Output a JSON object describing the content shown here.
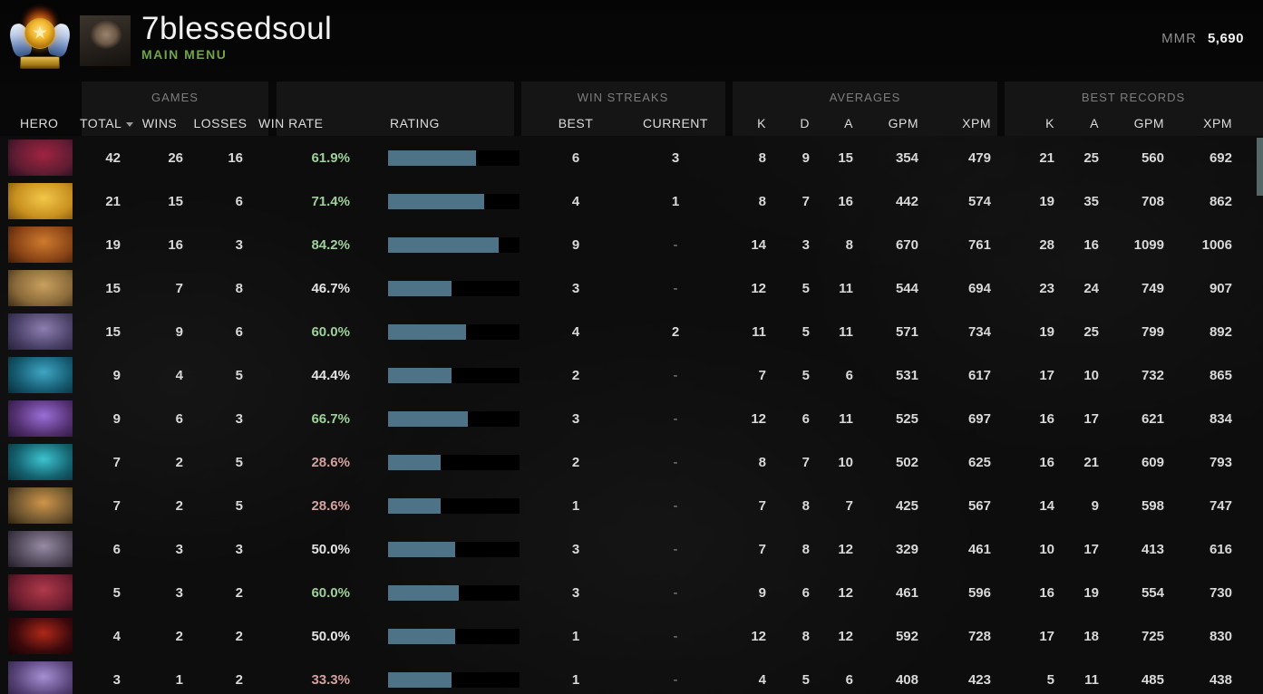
{
  "topbar": {
    "player_name": "7blessedsoul",
    "nav_label": "MAIN MENU",
    "mmr_label": "MMR",
    "mmr_value": "5,690",
    "rank_medal": "immortal-medal",
    "nav_color": "#71a347"
  },
  "table": {
    "hero_col": "HERO",
    "groups": {
      "games": "GAMES",
      "win_streaks": "WIN STREAKS",
      "averages": "AVERAGES",
      "best_records": "BEST RECORDS"
    },
    "columns": {
      "total": "TOTAL",
      "wins": "WINS",
      "losses": "LOSSES",
      "win_rate": "WIN RATE",
      "rating": "RATING",
      "best": "BEST",
      "current": "CURRENT",
      "k": "K",
      "d": "D",
      "a": "A",
      "gpm": "GPM",
      "xpm": "XPM",
      "rec_k": "K",
      "rec_a": "A",
      "rec_gpm": "GPM",
      "rec_xpm": "XPM"
    },
    "sorted_by": "total"
  },
  "colors": {
    "bar_fill": "#4e7386",
    "bar_bg": "#000000",
    "win_green": "#9ed09a",
    "win_red": "#d6a0a0",
    "win_neutral": "#e4e4e4",
    "scroll_thumb": "#566768"
  },
  "rows": [
    {
      "hero": "shadow-demon",
      "icon": {
        "c1": "#5f1d33",
        "c2": "#a12340",
        "c3": "#1c0a18"
      },
      "total": "42",
      "wins": "26",
      "losses": "16",
      "win_rate": "61.9%",
      "tone": "green",
      "rating_pct": 67,
      "best": "6",
      "current": "3",
      "k": "8",
      "d": "9",
      "a": "15",
      "gpm": "354",
      "xpm": "479",
      "rk": "21",
      "ra": "25",
      "rgpm": "560",
      "rxpm": "692"
    },
    {
      "hero": "vengeful-spirit",
      "icon": {
        "c1": "#c8901e",
        "c2": "#f2c84a",
        "c3": "#6a4408"
      },
      "total": "21",
      "wins": "15",
      "losses": "6",
      "win_rate": "71.4%",
      "tone": "green",
      "rating_pct": 73,
      "best": "4",
      "current": "1",
      "k": "8",
      "d": "7",
      "a": "16",
      "gpm": "442",
      "xpm": "574",
      "rk": "19",
      "ra": "35",
      "rgpm": "708",
      "rxpm": "862"
    },
    {
      "hero": "mars",
      "icon": {
        "c1": "#8a4416",
        "c2": "#cf7b2e",
        "c3": "#301405"
      },
      "total": "19",
      "wins": "16",
      "losses": "3",
      "win_rate": "84.2%",
      "tone": "green",
      "rating_pct": 84,
      "best": "9",
      "current": "-",
      "k": "14",
      "d": "3",
      "a": "8",
      "gpm": "670",
      "xpm": "761",
      "rk": "28",
      "ra": "16",
      "rgpm": "1099",
      "rxpm": "1006"
    },
    {
      "hero": "monkey-king",
      "icon": {
        "c1": "#8a6a3a",
        "c2": "#c9a05e",
        "c3": "#2c1f10"
      },
      "total": "15",
      "wins": "7",
      "losses": "8",
      "win_rate": "46.7%",
      "tone": "neutral",
      "rating_pct": 48,
      "best": "3",
      "current": "-",
      "k": "12",
      "d": "5",
      "a": "11",
      "gpm": "544",
      "xpm": "694",
      "rk": "23",
      "ra": "24",
      "rgpm": "749",
      "rxpm": "907"
    },
    {
      "hero": "tinker",
      "icon": {
        "c1": "#4a4168",
        "c2": "#8d7fb0",
        "c3": "#201a30"
      },
      "total": "15",
      "wins": "9",
      "losses": "6",
      "win_rate": "60.0%",
      "tone": "green",
      "rating_pct": 59,
      "best": "4",
      "current": "2",
      "k": "11",
      "d": "5",
      "a": "11",
      "gpm": "571",
      "xpm": "734",
      "rk": "19",
      "ra": "25",
      "rgpm": "799",
      "rxpm": "892"
    },
    {
      "hero": "morphling",
      "icon": {
        "c1": "#155a70",
        "c2": "#3fa6c4",
        "c3": "#06222e"
      },
      "total": "9",
      "wins": "4",
      "losses": "5",
      "win_rate": "44.4%",
      "tone": "neutral",
      "rating_pct": 48,
      "best": "2",
      "current": "-",
      "k": "7",
      "d": "5",
      "a": "6",
      "gpm": "531",
      "xpm": "617",
      "rk": "17",
      "ra": "10",
      "rgpm": "732",
      "rxpm": "865"
    },
    {
      "hero": "void-spirit",
      "icon": {
        "c1": "#533070",
        "c2": "#9a6fd8",
        "c3": "#1e1030"
      },
      "total": "9",
      "wins": "6",
      "losses": "3",
      "win_rate": "66.7%",
      "tone": "green",
      "rating_pct": 61,
      "best": "3",
      "current": "-",
      "k": "12",
      "d": "6",
      "a": "11",
      "gpm": "525",
      "xpm": "697",
      "rk": "16",
      "ra": "17",
      "rgpm": "621",
      "rxpm": "834"
    },
    {
      "hero": "storm-spirit",
      "icon": {
        "c1": "#14606e",
        "c2": "#3cc4cf",
        "c3": "#082830"
      },
      "total": "7",
      "wins": "2",
      "losses": "5",
      "win_rate": "28.6%",
      "tone": "red",
      "rating_pct": 40,
      "best": "2",
      "current": "-",
      "k": "8",
      "d": "7",
      "a": "10",
      "gpm": "502",
      "xpm": "625",
      "rk": "16",
      "ra": "21",
      "rgpm": "609",
      "rxpm": "793"
    },
    {
      "hero": "techies",
      "icon": {
        "c1": "#6e5530",
        "c2": "#cf9549",
        "c3": "#241806"
      },
      "total": "7",
      "wins": "2",
      "losses": "5",
      "win_rate": "28.6%",
      "tone": "red",
      "rating_pct": 40,
      "best": "1",
      "current": "-",
      "k": "7",
      "d": "8",
      "a": "7",
      "gpm": "425",
      "xpm": "567",
      "rk": "14",
      "ra": "9",
      "rgpm": "598",
      "rxpm": "747"
    },
    {
      "hero": "night-stalker",
      "icon": {
        "c1": "#4e4656",
        "c2": "#978ba4",
        "c3": "#18141e"
      },
      "total": "6",
      "wins": "3",
      "losses": "3",
      "win_rate": "50.0%",
      "tone": "neutral",
      "rating_pct": 51,
      "best": "3",
      "current": "-",
      "k": "7",
      "d": "8",
      "a": "12",
      "gpm": "329",
      "xpm": "461",
      "rk": "10",
      "ra": "17",
      "rgpm": "413",
      "rxpm": "616"
    },
    {
      "hero": "slardar",
      "icon": {
        "c1": "#6e1e30",
        "c2": "#b03a4a",
        "c3": "#200810"
      },
      "total": "5",
      "wins": "3",
      "losses": "2",
      "win_rate": "60.0%",
      "tone": "green",
      "rating_pct": 54,
      "best": "3",
      "current": "-",
      "k": "9",
      "d": "6",
      "a": "12",
      "gpm": "461",
      "xpm": "596",
      "rk": "16",
      "ra": "19",
      "rgpm": "554",
      "rxpm": "730"
    },
    {
      "hero": "shadow-fiend",
      "icon": {
        "c1": "#3a090c",
        "c2": "#b02818",
        "c3": "#0c0203"
      },
      "total": "4",
      "wins": "2",
      "losses": "2",
      "win_rate": "50.0%",
      "tone": "neutral",
      "rating_pct": 51,
      "best": "1",
      "current": "-",
      "k": "12",
      "d": "8",
      "a": "12",
      "gpm": "592",
      "xpm": "728",
      "rk": "17",
      "ra": "18",
      "rgpm": "725",
      "rxpm": "830"
    },
    {
      "hero": "oracle",
      "icon": {
        "c1": "#584478",
        "c2": "#a78fd4",
        "c3": "#241838"
      },
      "total": "3",
      "wins": "1",
      "losses": "2",
      "win_rate": "33.3%",
      "tone": "red",
      "rating_pct": 48,
      "best": "1",
      "current": "-",
      "k": "4",
      "d": "5",
      "a": "6",
      "gpm": "408",
      "xpm": "423",
      "rk": "5",
      "ra": "11",
      "rgpm": "485",
      "rxpm": "438"
    }
  ]
}
